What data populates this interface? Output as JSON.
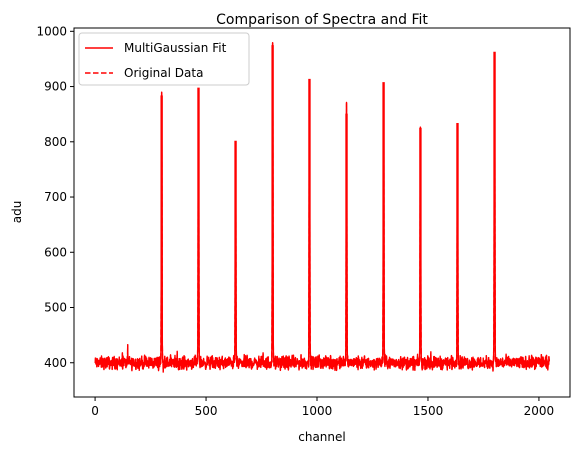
{
  "chart_data": {
    "type": "line",
    "title": "Comparison of Spectra and Fit",
    "xlabel": "channel",
    "ylabel": "adu",
    "xlim": [
      -95,
      2140
    ],
    "ylim": [
      338,
      1006
    ],
    "x_ticks": [
      0,
      500,
      1000,
      1500,
      2000
    ],
    "y_ticks": [
      400,
      500,
      600,
      700,
      800,
      900,
      1000
    ],
    "grid": false,
    "legend_position": "top-left",
    "channel_range": [
      0,
      2047
    ],
    "baseline": 400,
    "noise_range": [
      372,
      438
    ],
    "peaks": [
      {
        "channel": 300,
        "height": 884
      },
      {
        "channel": 466,
        "height": 898
      },
      {
        "channel": 633,
        "height": 802
      },
      {
        "channel": 800,
        "height": 975
      },
      {
        "channel": 966,
        "height": 914
      },
      {
        "channel": 1133,
        "height": 851
      },
      {
        "channel": 1300,
        "height": 908
      },
      {
        "channel": 1466,
        "height": 825
      },
      {
        "channel": 1633,
        "height": 834
      },
      {
        "channel": 1800,
        "height": 963
      }
    ],
    "series": [
      {
        "name": "MultiGaussian Fit",
        "style": "solid",
        "color": "#ff0000"
      },
      {
        "name": "Original Data",
        "style": "dashed",
        "color": "#ff0000"
      }
    ]
  }
}
